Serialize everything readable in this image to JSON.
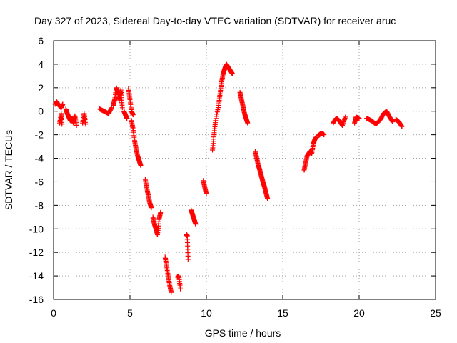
{
  "chart_data": {
    "type": "scatter",
    "title": "Day 327 of 2023, Sidereal Day-to-day VTEC variation (SDTVAR) for receiver aruc",
    "xlabel": "GPS time / hours",
    "ylabel": "SDTVAR / TECUs",
    "xlim": [
      0,
      25
    ],
    "ylim": [
      -16,
      6
    ],
    "xticks": [
      0,
      5,
      10,
      15,
      20,
      25
    ],
    "yticks": [
      -16,
      -14,
      -12,
      -10,
      -8,
      -6,
      -4,
      -2,
      0,
      2,
      4,
      6
    ],
    "grid": true,
    "marker": "+",
    "marker_color": "#ff0000",
    "series": [
      {
        "name": "SDTVAR",
        "segments": [
          {
            "x": [
              0.1,
              0.2,
              0.35,
              0.5,
              0.6
            ],
            "y": [
              0.6,
              0.8,
              0.5,
              0.3,
              0.6
            ]
          },
          {
            "x": [
              0.4,
              0.5,
              0.55
            ],
            "y": [
              -1.0,
              -0.2,
              -1.1
            ]
          },
          {
            "x": [
              0.8,
              0.9,
              1.0,
              1.1,
              1.2,
              1.3,
              1.4,
              1.5
            ],
            "y": [
              0.2,
              -0.2,
              -0.5,
              -0.8,
              -0.6,
              -1.0,
              -0.4,
              -1.2
            ]
          },
          {
            "x": [
              1.9,
              2.0,
              2.1
            ],
            "y": [
              -1.0,
              -0.2,
              -1.1
            ]
          },
          {
            "x": [
              3.0,
              3.3,
              3.6,
              3.8
            ],
            "y": [
              0.2,
              0.0,
              -0.2,
              0.3
            ]
          },
          {
            "x": [
              3.9,
              4.0,
              4.1,
              4.2,
              4.3,
              4.4,
              4.5
            ],
            "y": [
              0.5,
              1.0,
              2.0,
              1.6,
              0.9,
              1.8,
              0.3
            ]
          },
          {
            "x": [
              4.6,
              4.7,
              4.8
            ],
            "y": [
              0.0,
              -0.3,
              -0.6
            ]
          },
          {
            "x": [
              4.9,
              5.0,
              5.1,
              5.2
            ],
            "y": [
              1.9,
              1.0,
              0.0,
              -0.3
            ]
          },
          {
            "x": [
              5.1,
              5.2,
              5.3,
              5.4,
              5.5,
              5.6,
              5.7
            ],
            "y": [
              -0.8,
              -1.5,
              -2.5,
              -3.2,
              -3.8,
              -4.2,
              -4.6
            ]
          },
          {
            "x": [
              6.0,
              6.1,
              6.2,
              6.3,
              6.4
            ],
            "y": [
              -5.8,
              -6.5,
              -7.2,
              -7.8,
              -8.2
            ]
          },
          {
            "x": [
              6.5,
              6.6,
              6.7,
              6.8,
              6.9,
              7.0
            ],
            "y": [
              -9.0,
              -9.6,
              -10.0,
              -10.5,
              -9.2,
              -8.6
            ]
          },
          {
            "x": [
              7.3,
              7.4,
              7.5,
              7.6,
              7.7
            ],
            "y": [
              -12.4,
              -13.2,
              -14.0,
              -14.8,
              -15.4
            ]
          },
          {
            "x": [
              8.1,
              8.2,
              8.3
            ],
            "y": [
              -14.1,
              -14.0,
              -15.1
            ]
          },
          {
            "x": [
              8.7,
              8.75,
              8.8
            ],
            "y": [
              -10.5,
              -10.6,
              -12.6
            ]
          },
          {
            "x": [
              9.0,
              9.1,
              9.2,
              9.3
            ],
            "y": [
              -8.4,
              -8.8,
              -9.2,
              -9.6
            ]
          },
          {
            "x": [
              9.8,
              9.9,
              10.0
            ],
            "y": [
              -5.9,
              -6.5,
              -7.0
            ]
          },
          {
            "x": [
              10.4,
              10.5,
              10.6,
              10.8,
              10.9,
              11.0,
              11.1,
              11.2,
              11.3,
              11.4,
              11.5,
              11.6,
              11.7
            ],
            "y": [
              -3.3,
              -2.0,
              -0.8,
              0.5,
              1.5,
              2.5,
              3.2,
              3.6,
              4.0,
              3.8,
              3.6,
              3.4,
              3.2
            ]
          },
          {
            "x": [
              12.2,
              12.3,
              12.4,
              12.5,
              12.6,
              12.7
            ],
            "y": [
              1.6,
              1.0,
              0.4,
              -0.2,
              -0.6,
              -1.0
            ]
          },
          {
            "x": [
              13.2,
              13.3,
              13.4,
              13.5,
              13.6,
              13.7,
              13.8,
              13.9,
              14.0
            ],
            "y": [
              -3.4,
              -4.0,
              -4.6,
              -5.0,
              -5.5,
              -6.0,
              -6.4,
              -6.9,
              -7.4
            ]
          },
          {
            "x": [
              16.4,
              16.5,
              16.6,
              16.7,
              16.8,
              16.9,
              17.0,
              17.1,
              17.2
            ],
            "y": [
              -5.0,
              -4.4,
              -3.8,
              -3.6,
              -3.4,
              -3.6,
              -2.8,
              -2.4,
              -2.2
            ]
          },
          {
            "x": [
              17.3,
              17.4,
              17.5,
              17.6,
              17.7
            ],
            "y": [
              -2.1,
              -2.0,
              -1.9,
              -1.9,
              -2.0
            ]
          },
          {
            "x": [
              18.3,
              18.5,
              18.7,
              18.9,
              19.1
            ],
            "y": [
              -1.0,
              -0.6,
              -0.8,
              -1.2,
              -0.5
            ]
          },
          {
            "x": [
              19.7,
              19.8,
              20.0
            ],
            "y": [
              -1.0,
              -0.5,
              -0.6
            ]
          },
          {
            "x": [
              20.5,
              20.8,
              21.1,
              21.4,
              21.6,
              21.8,
              22.0,
              22.2
            ],
            "y": [
              -0.6,
              -0.8,
              -1.1,
              -0.7,
              -0.2,
              0.0,
              -0.5,
              -0.9
            ]
          },
          {
            "x": [
              22.4,
              22.6,
              22.8
            ],
            "y": [
              -0.7,
              -0.9,
              -1.3
            ]
          }
        ]
      }
    ]
  }
}
